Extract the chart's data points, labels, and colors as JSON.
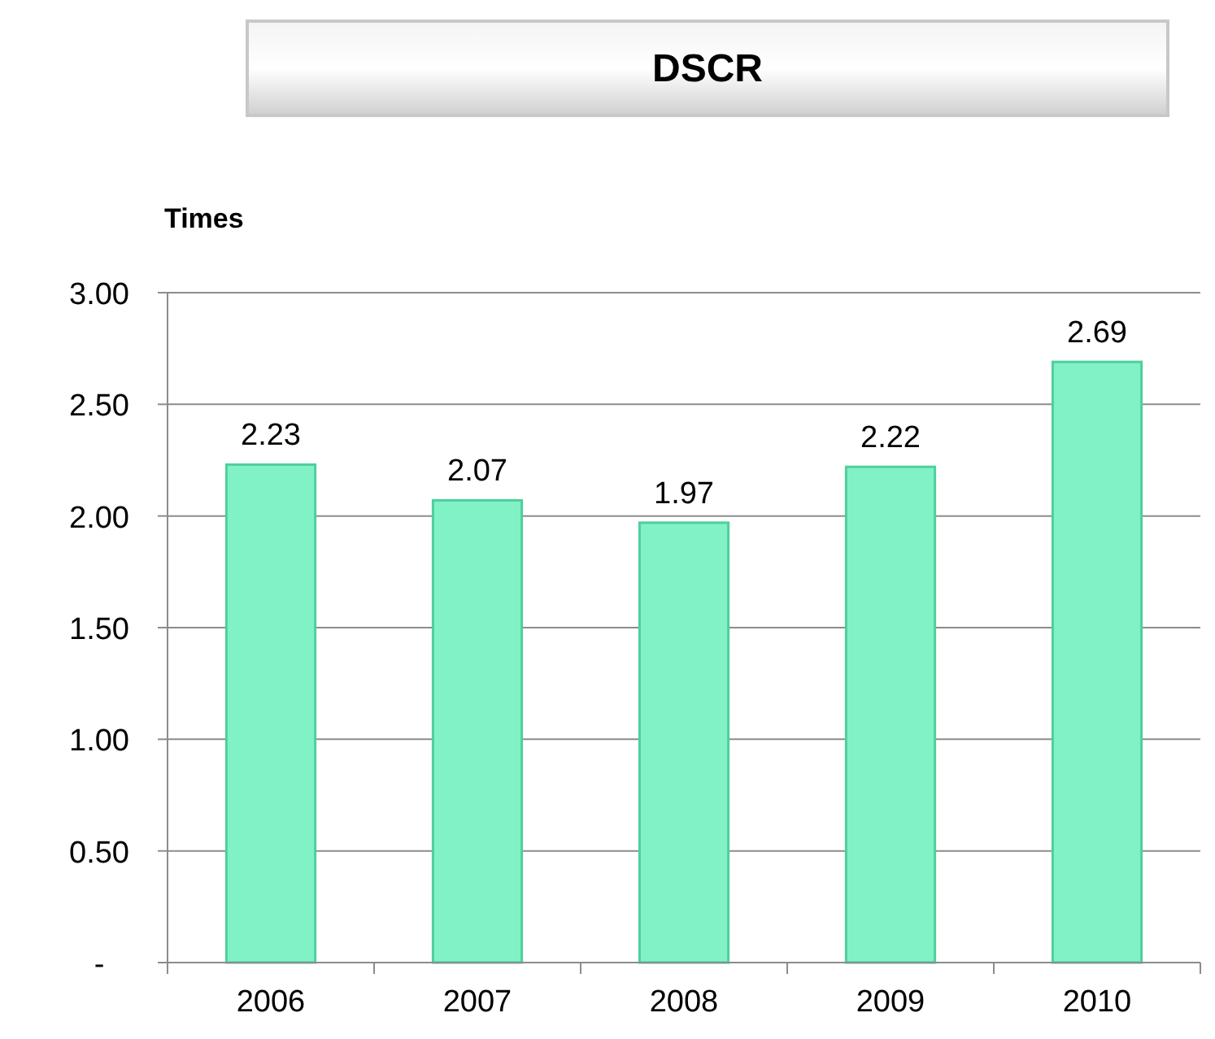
{
  "chart_data": {
    "type": "bar",
    "title": "DSCR",
    "ylabel": "Times",
    "categories": [
      "2006",
      "2007",
      "2008",
      "2009",
      "2010"
    ],
    "values": [
      2.23,
      2.07,
      1.97,
      2.22,
      2.69
    ],
    "color": "#80f2c6",
    "ylim": [
      0,
      3
    ],
    "yticks": [
      {
        "value": 0,
        "label": "-"
      },
      {
        "value": 0.5,
        "label": "0.50"
      },
      {
        "value": 1,
        "label": "1.00"
      },
      {
        "value": 1.5,
        "label": "1.50"
      },
      {
        "value": 2,
        "label": "2.00"
      },
      {
        "value": 2.5,
        "label": "2.50"
      },
      {
        "value": 3,
        "label": "3.00"
      }
    ],
    "grid": "y",
    "data_labels": true
  }
}
